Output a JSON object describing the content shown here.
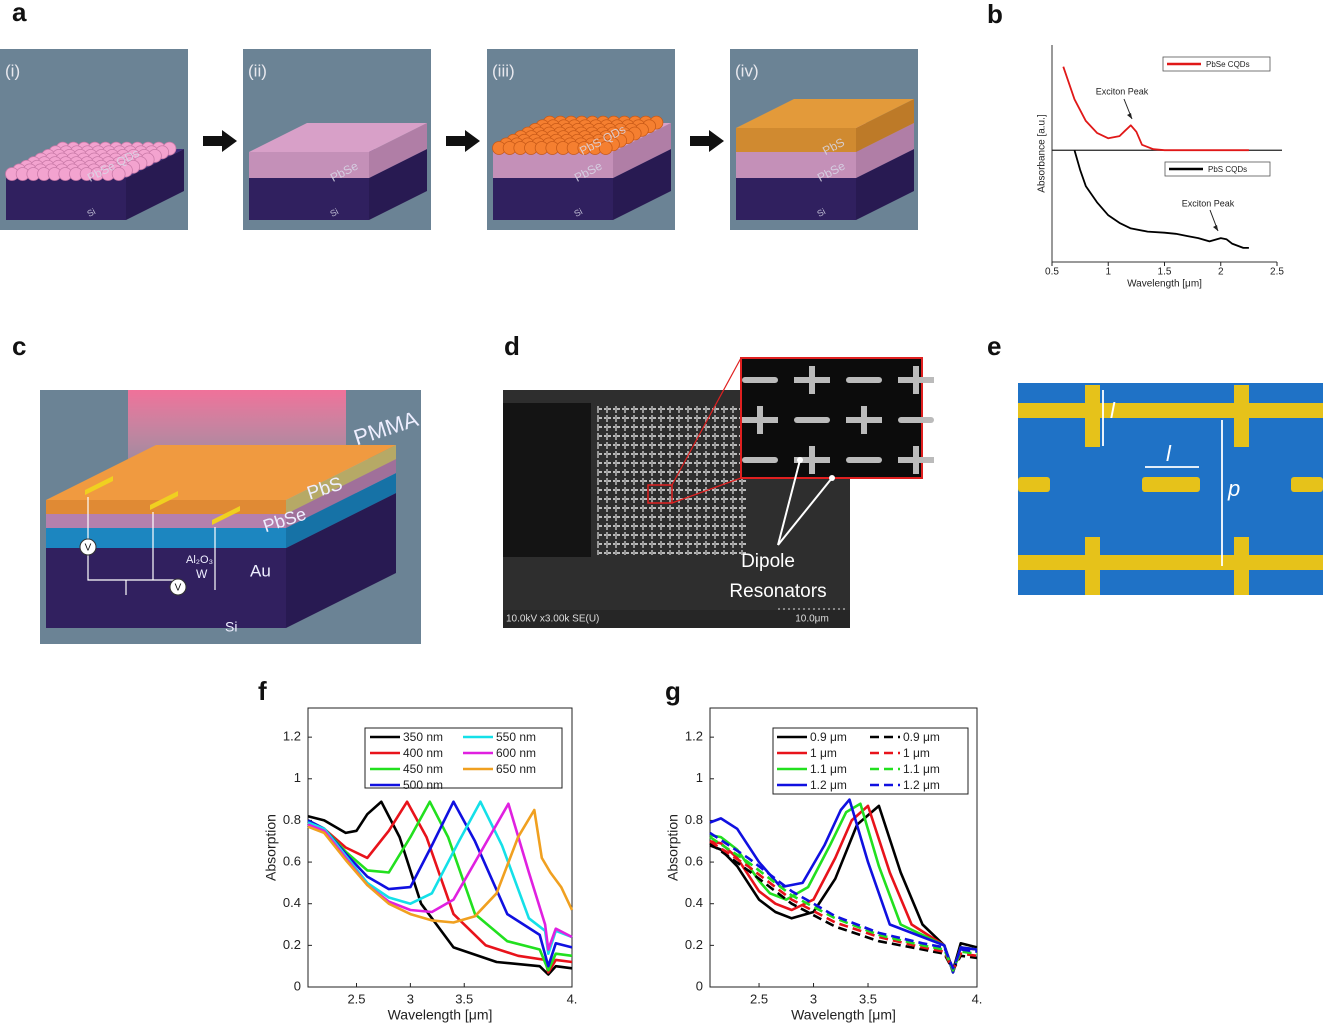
{
  "panels": {
    "a": {
      "label": "a",
      "steps": [
        "(i)",
        "(ii)",
        "(iii)",
        "(iv)"
      ],
      "layer_labels": [
        [
          "PbSe QDs",
          "Si"
        ],
        [
          "PbSe",
          "Si"
        ],
        [
          "PbS QDs",
          "PbSe",
          "Si"
        ],
        [
          "PbS",
          "PbSe",
          "Si"
        ]
      ]
    },
    "b": {
      "label": "b"
    },
    "c": {
      "label": "c",
      "layers": [
        "PMMA",
        "PbS",
        "PbSe",
        "Au",
        "Al₂O₃",
        "W",
        "Si"
      ],
      "meters": [
        "V",
        "V"
      ]
    },
    "d": {
      "label": "d",
      "callout": [
        "Dipole",
        "Resonators"
      ],
      "sem_info": "10.0kV x3.00k SE(U)",
      "scale_bar": "10.0μm"
    },
    "e": {
      "label": "e",
      "dims": [
        "l",
        "l",
        "p"
      ]
    },
    "f": {
      "label": "f"
    },
    "g": {
      "label": "g"
    }
  },
  "chart_data": [
    {
      "type": "line",
      "xlabel": "Wavelength [μm]",
      "ylabel": "Absorbance [a.u.]",
      "xlim": [
        0.5,
        2.5
      ],
      "ylim": [
        0,
        2
      ],
      "xticks": [
        0.5,
        1,
        1.5,
        2,
        2.5
      ],
      "baseline": 1.03,
      "annotations": [
        "Exciton Peak",
        "Exciton Peak"
      ],
      "series": [
        {
          "name": "PbSe CQDs",
          "color": "#e01818",
          "x": [
            0.6,
            0.7,
            0.8,
            0.9,
            1.0,
            1.1,
            1.15,
            1.2,
            1.25,
            1.3,
            1.4,
            1.5,
            1.8,
            2.25
          ],
          "values": [
            1.8,
            1.5,
            1.3,
            1.19,
            1.14,
            1.16,
            1.21,
            1.26,
            1.2,
            1.08,
            1.04,
            1.03,
            1.03,
            1.03
          ]
        },
        {
          "name": "PbS CQDs",
          "color": "#000000",
          "x": [
            0.7,
            0.75,
            0.8,
            0.9,
            1.0,
            1.1,
            1.2,
            1.35,
            1.5,
            1.6,
            1.7,
            1.8,
            1.9,
            2.0,
            2.05,
            2.1,
            2.2,
            2.25
          ],
          "values": [
            1.03,
            0.85,
            0.7,
            0.55,
            0.43,
            0.36,
            0.31,
            0.28,
            0.27,
            0.26,
            0.24,
            0.22,
            0.19,
            0.22,
            0.21,
            0.17,
            0.13,
            0.13
          ]
        }
      ]
    },
    {
      "type": "line",
      "xlabel": "Wavelength [μm]",
      "ylabel": "Absorption",
      "xlim": [
        2.05,
        4.5
      ],
      "ylim": [
        0,
        1.34
      ],
      "xticks": [
        2.5,
        3,
        3.5,
        {
          "value": 4.5,
          "label": "4."
        }
      ],
      "yticks": [
        0,
        0.2,
        0.4,
        0.6,
        0.8,
        1,
        1.2
      ],
      "series": [
        {
          "name": "350 nm",
          "color": "#000000",
          "x": [
            2.05,
            2.2,
            2.4,
            2.5,
            2.6,
            2.73,
            2.9,
            3.1,
            3.4,
            3.8,
            4.2,
            4.28,
            4.35,
            4.5
          ],
          "values": [
            0.82,
            0.8,
            0.74,
            0.75,
            0.83,
            0.89,
            0.72,
            0.4,
            0.19,
            0.12,
            0.1,
            0.06,
            0.1,
            0.09
          ]
        },
        {
          "name": "400 nm",
          "color": "#e8131b",
          "x": [
            2.05,
            2.2,
            2.4,
            2.6,
            2.8,
            2.97,
            3.15,
            3.4,
            3.7,
            4.0,
            4.25,
            4.28,
            4.35,
            4.5
          ],
          "values": [
            0.8,
            0.76,
            0.67,
            0.62,
            0.75,
            0.89,
            0.72,
            0.35,
            0.2,
            0.15,
            0.13,
            0.07,
            0.13,
            0.12
          ]
        },
        {
          "name": "450 nm",
          "color": "#22e01f",
          "x": [
            2.05,
            2.2,
            2.4,
            2.6,
            2.8,
            3.0,
            3.18,
            3.35,
            3.6,
            3.9,
            4.2,
            4.28,
            4.35,
            4.5
          ],
          "values": [
            0.8,
            0.76,
            0.65,
            0.56,
            0.55,
            0.72,
            0.89,
            0.72,
            0.35,
            0.22,
            0.18,
            0.08,
            0.16,
            0.15
          ]
        },
        {
          "name": "500 nm",
          "color": "#1010e0",
          "x": [
            2.05,
            2.2,
            2.4,
            2.6,
            2.8,
            3.0,
            3.2,
            3.4,
            3.6,
            3.9,
            4.2,
            4.28,
            4.35,
            4.5
          ],
          "values": [
            0.8,
            0.76,
            0.64,
            0.53,
            0.47,
            0.48,
            0.68,
            0.89,
            0.7,
            0.35,
            0.25,
            0.1,
            0.21,
            0.19
          ]
        },
        {
          "name": "550 nm",
          "color": "#14e0e8",
          "x": [
            2.05,
            2.2,
            2.4,
            2.6,
            2.8,
            3.0,
            3.2,
            3.45,
            3.65,
            3.85,
            4.1,
            4.25,
            4.28,
            4.35,
            4.5
          ],
          "values": [
            0.79,
            0.76,
            0.63,
            0.5,
            0.43,
            0.4,
            0.45,
            0.7,
            0.89,
            0.68,
            0.33,
            0.27,
            0.16,
            0.27,
            0.24
          ]
        },
        {
          "name": "600 nm",
          "color": "#e020e0",
          "x": [
            2.05,
            2.2,
            2.4,
            2.6,
            2.8,
            3.0,
            3.2,
            3.4,
            3.6,
            3.91,
            4.1,
            4.25,
            4.28,
            4.35,
            4.5
          ],
          "values": [
            0.78,
            0.75,
            0.62,
            0.49,
            0.41,
            0.37,
            0.36,
            0.42,
            0.6,
            0.88,
            0.55,
            0.3,
            0.18,
            0.28,
            0.24
          ]
        },
        {
          "name": "650 nm",
          "color": "#f0a020",
          "x": [
            2.05,
            2.2,
            2.4,
            2.6,
            2.8,
            3.0,
            3.2,
            3.4,
            3.6,
            3.8,
            4.0,
            4.15,
            4.22,
            4.3,
            4.4,
            4.5
          ],
          "values": [
            0.77,
            0.74,
            0.61,
            0.49,
            0.4,
            0.35,
            0.32,
            0.31,
            0.34,
            0.45,
            0.72,
            0.85,
            0.62,
            0.55,
            0.48,
            0.37
          ]
        }
      ]
    },
    {
      "type": "line",
      "xlabel": "Wavelength [μm]",
      "ylabel": "Absorption",
      "xlim": [
        2.05,
        4.5
      ],
      "ylim": [
        0,
        1.34
      ],
      "xticks": [
        2.5,
        3,
        3.5,
        {
          "value": 4.5,
          "label": "4."
        }
      ],
      "yticks": [
        0,
        0.2,
        0.4,
        0.6,
        0.8,
        1,
        1.2
      ],
      "series": [
        {
          "name": "0.9 μm",
          "color": "#000000",
          "x": [
            2.05,
            2.15,
            2.3,
            2.5,
            2.65,
            2.8,
            3.0,
            3.2,
            3.4,
            3.6,
            3.8,
            4.0,
            4.2,
            4.28,
            4.35,
            4.5
          ],
          "values": [
            0.68,
            0.66,
            0.58,
            0.42,
            0.36,
            0.33,
            0.36,
            0.52,
            0.78,
            0.87,
            0.55,
            0.3,
            0.2,
            0.08,
            0.21,
            0.19
          ]
        },
        {
          "name": "1 μm",
          "color": "#e8131b",
          "x": [
            2.05,
            2.15,
            2.3,
            2.5,
            2.65,
            2.8,
            3.0,
            3.2,
            3.35,
            3.5,
            3.7,
            3.9,
            4.2,
            4.28,
            4.35,
            4.5
          ],
          "values": [
            0.7,
            0.69,
            0.62,
            0.46,
            0.4,
            0.37,
            0.42,
            0.62,
            0.8,
            0.87,
            0.55,
            0.3,
            0.2,
            0.07,
            0.19,
            0.18
          ]
        },
        {
          "name": "1.1 μm",
          "color": "#22e01f",
          "x": [
            2.05,
            2.15,
            2.3,
            2.5,
            2.6,
            2.75,
            2.95,
            3.15,
            3.3,
            3.43,
            3.6,
            3.8,
            4.2,
            4.28,
            4.35,
            4.5
          ],
          "values": [
            0.73,
            0.72,
            0.66,
            0.51,
            0.45,
            0.42,
            0.48,
            0.68,
            0.84,
            0.88,
            0.58,
            0.3,
            0.2,
            0.07,
            0.19,
            0.18
          ]
        },
        {
          "name": "1.2 μm",
          "color": "#1010e0",
          "x": [
            2.05,
            2.15,
            2.3,
            2.5,
            2.7,
            2.9,
            3.1,
            3.25,
            3.33,
            3.5,
            3.7,
            4.2,
            4.28,
            4.35,
            4.5
          ],
          "values": [
            0.79,
            0.81,
            0.76,
            0.6,
            0.48,
            0.5,
            0.68,
            0.85,
            0.9,
            0.6,
            0.3,
            0.2,
            0.07,
            0.19,
            0.18
          ]
        },
        {
          "name": "0.9 μm",
          "color": "#000000",
          "dash": true,
          "x": [
            2.05,
            2.4,
            2.8,
            3.2,
            3.6,
            4.0,
            4.2,
            4.28,
            4.35,
            4.5
          ],
          "values": [
            0.69,
            0.56,
            0.4,
            0.29,
            0.22,
            0.18,
            0.16,
            0.08,
            0.15,
            0.14
          ]
        },
        {
          "name": "1 μm",
          "color": "#e8131b",
          "dash": true,
          "x": [
            2.05,
            2.4,
            2.8,
            3.2,
            3.6,
            4.0,
            4.2,
            4.28,
            4.35,
            4.5
          ],
          "values": [
            0.7,
            0.58,
            0.42,
            0.31,
            0.24,
            0.19,
            0.17,
            0.08,
            0.16,
            0.15
          ]
        },
        {
          "name": "1.1 μm",
          "color": "#22e01f",
          "dash": true,
          "x": [
            2.05,
            2.4,
            2.8,
            3.2,
            3.6,
            4.0,
            4.2,
            4.28,
            4.35,
            4.5
          ],
          "values": [
            0.72,
            0.6,
            0.44,
            0.33,
            0.25,
            0.2,
            0.18,
            0.08,
            0.17,
            0.16
          ]
        },
        {
          "name": "1.2 μm",
          "color": "#1010e0",
          "dash": true,
          "x": [
            2.05,
            2.4,
            2.8,
            3.2,
            3.6,
            4.0,
            4.2,
            4.28,
            4.35,
            4.5
          ],
          "values": [
            0.74,
            0.62,
            0.46,
            0.34,
            0.26,
            0.21,
            0.19,
            0.09,
            0.18,
            0.17
          ]
        }
      ]
    }
  ]
}
